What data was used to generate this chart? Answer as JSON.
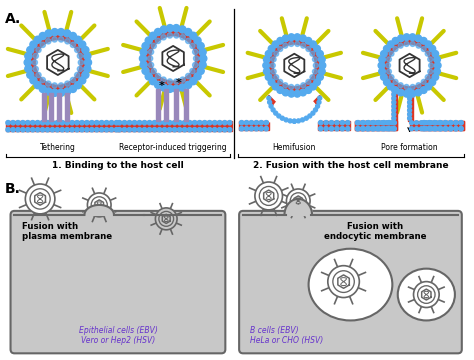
{
  "title_A": "A.",
  "title_B": "B.",
  "label_tethering": "Tethering",
  "label_receptor": "Receptor-induced triggering",
  "label_hemifusion": "Hemifusion",
  "label_pore": "Pore formation",
  "label_binding": "1. Binding to the host cell",
  "label_fusion": "2. Fusion with the host cell membrane",
  "label_plasma": "Fusion with\nplasma membrane",
  "label_endocytic": "Fusion with\nendocytic membrane",
  "label_epithelial": "Epithelial cells (EBV)\nVero or Hep2 (HSV)",
  "label_bcells": "B cells (EBV)\nHeLa or CHO (HSV)",
  "bg_color": "#ffffff",
  "cell_bg": "#c8c8c8",
  "purple_text": "#6633cc",
  "blue_dots": "#55aaee",
  "red_layer": "#dd3322",
  "yellow_spike": "#c8c800",
  "purple_receptor": "#9988bb",
  "dark_gray": "#333333",
  "medium_gray": "#666666",
  "light_gray": "#aaaaaa",
  "virus_gray": "#888888"
}
